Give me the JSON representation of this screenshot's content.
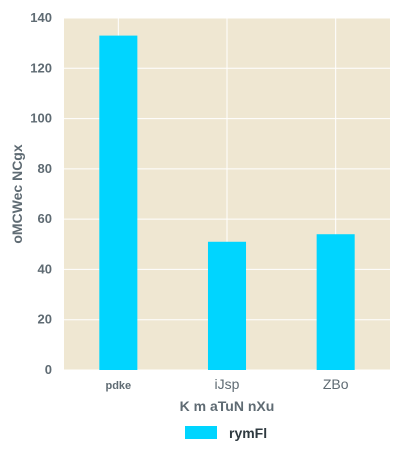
{
  "chart_data": {
    "type": "bar",
    "categories": [
      "pdke",
      "iJsp",
      "ZBo"
    ],
    "series": [
      {
        "name": "rymFl",
        "values": [
          133,
          51,
          54
        ]
      }
    ],
    "xlabel": "K m aTuN nXu",
    "ylabel": "oMCWec NCgx",
    "ylim": [
      0,
      140
    ],
    "yticks": [
      0,
      20,
      40,
      60,
      80,
      100,
      120,
      140
    ],
    "grid": true,
    "legend": "bottom-center",
    "colors": {
      "bar": "#00d5ff",
      "plot_background": "#efe7d2",
      "grid": "#ffffff",
      "text": "#5f6b73"
    }
  }
}
